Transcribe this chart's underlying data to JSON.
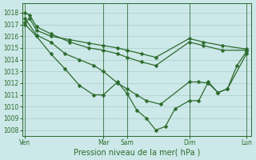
{
  "background_color": "#cce8e8",
  "grid_color": "#aacccc",
  "line_color": "#2d6b2d",
  "marker_color": "#2d6b2d",
  "xlabel": "Pression niveau de la mer( hPa )",
  "ylim": [
    1007.5,
    1018.8
  ],
  "yticks": [
    1008,
    1009,
    1010,
    1011,
    1012,
    1013,
    1014,
    1015,
    1016,
    1017,
    1018
  ],
  "xlim": [
    0,
    24
  ],
  "day_labels": [
    "Ven",
    "Mar",
    "Sam",
    "Dim",
    "Lun"
  ],
  "day_positions": [
    0.3,
    8.5,
    11.0,
    17.5,
    23.5
  ],
  "vline_positions": [
    0.3,
    8.5,
    11.0,
    17.5,
    23.5
  ],
  "series1_x": [
    0.3,
    1.5,
    3.0,
    4.5,
    6.0,
    7.5,
    8.5,
    10.0,
    11.0,
    12.0,
    13.0,
    14.0,
    15.0,
    16.0,
    17.5,
    18.5,
    19.5,
    20.5,
    21.5,
    22.5,
    23.5
  ],
  "series1_y": [
    1017.0,
    1016.0,
    1014.5,
    1013.2,
    1011.8,
    1011.0,
    1011.0,
    1012.1,
    1011.1,
    1009.7,
    1009.0,
    1008.0,
    1008.3,
    1009.8,
    1010.5,
    1010.5,
    1012.1,
    1011.2,
    1011.5,
    1013.5,
    1014.7
  ],
  "series2_x": [
    0.3,
    1.5,
    3.0,
    4.5,
    6.0,
    7.5,
    8.5,
    10.0,
    11.0,
    12.0,
    13.0,
    14.5,
    17.5,
    18.5,
    19.5,
    20.5,
    21.5,
    23.5
  ],
  "series2_y": [
    1017.5,
    1016.1,
    1015.5,
    1014.5,
    1014.0,
    1013.5,
    1013.0,
    1012.0,
    1011.5,
    1011.0,
    1010.5,
    1010.2,
    1012.1,
    1012.1,
    1012.0,
    1011.2,
    1011.5,
    1014.5
  ],
  "series3_x": [
    0.3,
    0.8,
    1.5,
    3.0,
    5.0,
    7.0,
    8.5,
    10.0,
    11.0,
    12.5,
    14.0,
    17.5,
    19.0,
    21.0,
    23.5
  ],
  "series3_y": [
    1018.0,
    1017.8,
    1016.8,
    1016.2,
    1015.5,
    1015.0,
    1014.8,
    1014.5,
    1014.2,
    1013.8,
    1013.5,
    1015.5,
    1015.2,
    1014.8,
    1014.8
  ],
  "series4_x": [
    0.3,
    0.8,
    1.5,
    3.0,
    5.0,
    7.0,
    8.5,
    10.0,
    11.0,
    12.5,
    14.0,
    17.5,
    19.0,
    21.0,
    23.5
  ],
  "series4_y": [
    1017.2,
    1017.5,
    1016.5,
    1016.0,
    1015.7,
    1015.4,
    1015.2,
    1015.0,
    1014.8,
    1014.5,
    1014.2,
    1015.8,
    1015.5,
    1015.2,
    1014.9
  ],
  "marker_size": 2.5,
  "linewidth": 0.9,
  "tick_labelsize": 5.5,
  "xlabel_fontsize": 7,
  "xlabel_color": "#2d6b2d",
  "tick_color": "#2d6b2d",
  "spine_color": "#2d6b2d"
}
